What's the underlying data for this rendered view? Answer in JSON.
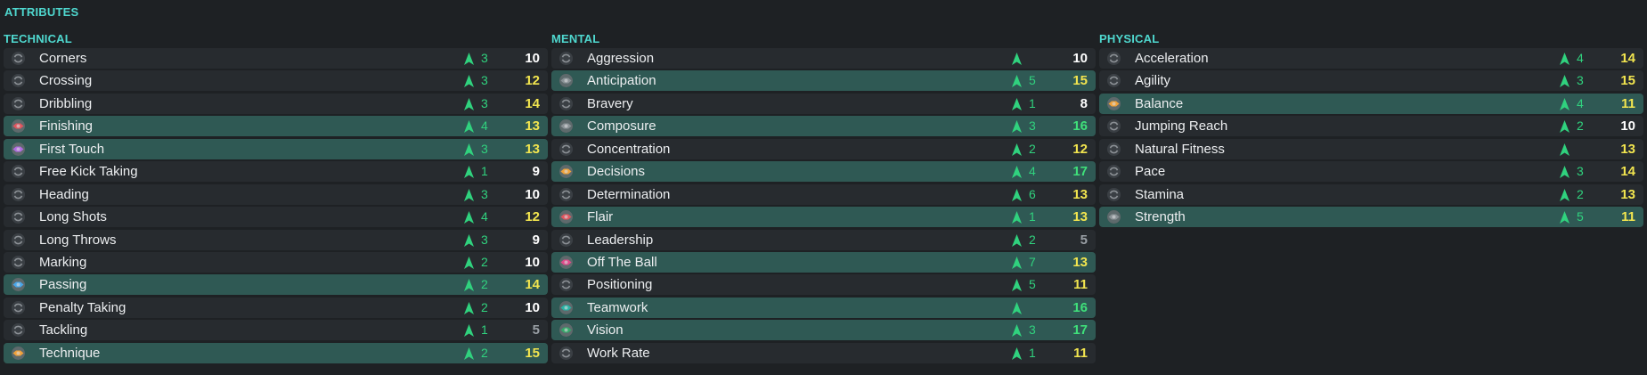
{
  "title": "ATTRIBUTES",
  "colors": {
    "accent": "#4fd8cf",
    "highlight_row": "#2f5954",
    "row": "#272b2f",
    "change_green": "#30d27e",
    "value_white": "#ffffff",
    "value_yellow": "#f2e54f",
    "value_green": "#3fe07a",
    "value_grey": "#9aa0a6"
  },
  "columns": [
    {
      "heading": "TECHNICAL",
      "rows": [
        {
          "name": "Corners",
          "change": "3",
          "value": "10",
          "value_color": "white",
          "highlight": false,
          "icon": "neutral-icon"
        },
        {
          "name": "Crossing",
          "change": "3",
          "value": "12",
          "value_color": "yellow",
          "highlight": false,
          "icon": "neutral-icon"
        },
        {
          "name": "Dribbling",
          "change": "3",
          "value": "14",
          "value_color": "yellow",
          "highlight": false,
          "icon": "neutral-icon"
        },
        {
          "name": "Finishing",
          "change": "4",
          "value": "13",
          "value_color": "yellow",
          "highlight": true,
          "icon": "red-key-icon"
        },
        {
          "name": "First Touch",
          "change": "3",
          "value": "13",
          "value_color": "yellow",
          "highlight": true,
          "icon": "purple-key-icon"
        },
        {
          "name": "Free Kick Taking",
          "change": "1",
          "value": "9",
          "value_color": "white",
          "highlight": false,
          "icon": "neutral-icon"
        },
        {
          "name": "Heading",
          "change": "3",
          "value": "10",
          "value_color": "white",
          "highlight": false,
          "icon": "neutral-icon"
        },
        {
          "name": "Long Shots",
          "change": "4",
          "value": "12",
          "value_color": "yellow",
          "highlight": false,
          "icon": "neutral-icon"
        },
        {
          "name": "Long Throws",
          "change": "3",
          "value": "9",
          "value_color": "white",
          "highlight": false,
          "icon": "neutral-icon"
        },
        {
          "name": "Marking",
          "change": "2",
          "value": "10",
          "value_color": "white",
          "highlight": false,
          "icon": "neutral-icon"
        },
        {
          "name": "Passing",
          "change": "2",
          "value": "14",
          "value_color": "yellow",
          "highlight": true,
          "icon": "blue-key-icon"
        },
        {
          "name": "Penalty Taking",
          "change": "2",
          "value": "10",
          "value_color": "white",
          "highlight": false,
          "icon": "neutral-icon"
        },
        {
          "name": "Tackling",
          "change": "1",
          "value": "5",
          "value_color": "grey",
          "highlight": false,
          "icon": "neutral-icon"
        },
        {
          "name": "Technique",
          "change": "2",
          "value": "15",
          "value_color": "yellow",
          "highlight": true,
          "icon": "orange-key-icon"
        }
      ]
    },
    {
      "heading": "MENTAL",
      "rows": [
        {
          "name": "Aggression",
          "change": "",
          "value": "10",
          "value_color": "white",
          "highlight": false,
          "icon": "neutral-icon"
        },
        {
          "name": "Anticipation",
          "change": "5",
          "value": "15",
          "value_color": "yellow",
          "highlight": true,
          "icon": "grey-key-icon"
        },
        {
          "name": "Bravery",
          "change": "1",
          "value": "8",
          "value_color": "white",
          "highlight": false,
          "icon": "neutral-icon"
        },
        {
          "name": "Composure",
          "change": "3",
          "value": "16",
          "value_color": "green",
          "highlight": true,
          "icon": "grey-key-icon"
        },
        {
          "name": "Concentration",
          "change": "2",
          "value": "12",
          "value_color": "yellow",
          "highlight": false,
          "icon": "neutral-icon"
        },
        {
          "name": "Decisions",
          "change": "4",
          "value": "17",
          "value_color": "green",
          "highlight": true,
          "icon": "orange-key-icon"
        },
        {
          "name": "Determination",
          "change": "6",
          "value": "13",
          "value_color": "yellow",
          "highlight": false,
          "icon": "neutral-icon"
        },
        {
          "name": "Flair",
          "change": "1",
          "value": "13",
          "value_color": "yellow",
          "highlight": true,
          "icon": "red-key-icon"
        },
        {
          "name": "Leadership",
          "change": "2",
          "value": "5",
          "value_color": "grey",
          "highlight": false,
          "icon": "neutral-icon"
        },
        {
          "name": "Off The Ball",
          "change": "7",
          "value": "13",
          "value_color": "yellow",
          "highlight": true,
          "icon": "pink-key-icon"
        },
        {
          "name": "Positioning",
          "change": "5",
          "value": "11",
          "value_color": "yellow",
          "highlight": false,
          "icon": "neutral-icon"
        },
        {
          "name": "Teamwork",
          "change": "",
          "value": "16",
          "value_color": "green",
          "highlight": true,
          "icon": "teal-key-icon"
        },
        {
          "name": "Vision",
          "change": "3",
          "value": "17",
          "value_color": "green",
          "highlight": true,
          "icon": "green-key-icon"
        },
        {
          "name": "Work Rate",
          "change": "1",
          "value": "11",
          "value_color": "yellow",
          "highlight": false,
          "icon": "neutral-icon"
        }
      ]
    },
    {
      "heading": "PHYSICAL",
      "rows": [
        {
          "name": "Acceleration",
          "change": "4",
          "value": "14",
          "value_color": "yellow",
          "highlight": false,
          "icon": "neutral-icon"
        },
        {
          "name": "Agility",
          "change": "3",
          "value": "15",
          "value_color": "yellow",
          "highlight": false,
          "icon": "neutral-icon"
        },
        {
          "name": "Balance",
          "change": "4",
          "value": "11",
          "value_color": "yellow",
          "highlight": true,
          "icon": "orange-key-icon"
        },
        {
          "name": "Jumping Reach",
          "change": "2",
          "value": "10",
          "value_color": "white",
          "highlight": false,
          "icon": "neutral-icon"
        },
        {
          "name": "Natural Fitness",
          "change": "",
          "value": "13",
          "value_color": "yellow",
          "highlight": false,
          "icon": "neutral-icon"
        },
        {
          "name": "Pace",
          "change": "3",
          "value": "14",
          "value_color": "yellow",
          "highlight": false,
          "icon": "neutral-icon"
        },
        {
          "name": "Stamina",
          "change": "2",
          "value": "13",
          "value_color": "yellow",
          "highlight": false,
          "icon": "neutral-icon"
        },
        {
          "name": "Strength",
          "change": "5",
          "value": "11",
          "value_color": "yellow",
          "highlight": true,
          "icon": "grey-key-icon"
        }
      ]
    }
  ]
}
